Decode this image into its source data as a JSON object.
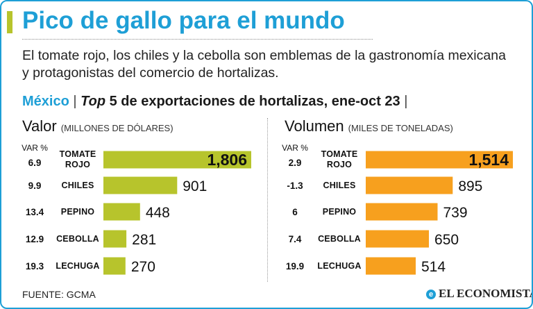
{
  "title": "Pico de gallo para el mundo",
  "subtitle": "El tomate rojo, los chiles y la cebolla son emblemas de la gastronomía mexicana y protagonistas del comercio de hortalizas.",
  "section": {
    "country": "México",
    "separator": "|",
    "top_word": "Top",
    "heading_rest": " 5 de exportaciones de hortalizas, ene-oct 23 ",
    "end_separator": "|"
  },
  "colors": {
    "accent": "#1e9fd6",
    "valor_bar": "#b7c42c",
    "volumen_bar": "#f7a01e",
    "lime_mark": "#b7c42c"
  },
  "chart_data": [
    {
      "type": "bar",
      "orientation": "horizontal",
      "title": "Valor",
      "unit": "(MILLONES DE DÓLARES)",
      "var_header": [
        "VAR %"
      ],
      "categories": [
        [
          "TOMATE",
          "ROJO"
        ],
        [
          "CHILES"
        ],
        [
          "PEPINO"
        ],
        [
          "CEBOLLA"
        ],
        [
          "LECHUGA"
        ]
      ],
      "values": [
        1806,
        901,
        448,
        281,
        270
      ],
      "value_labels": [
        "1,806",
        "901",
        "448",
        "281",
        "270"
      ],
      "var_pct": [
        "6.9",
        "9.9",
        "13.4",
        "12.9",
        "19.3"
      ],
      "xlim": [
        0,
        1806
      ]
    },
    {
      "type": "bar",
      "orientation": "horizontal",
      "title": "Volumen",
      "unit": "(MILES DE TONELADAS)",
      "var_header": [
        "VAR %"
      ],
      "categories": [
        [
          "TOMATE",
          "ROJO"
        ],
        [
          "CHILES"
        ],
        [
          "PEPINO"
        ],
        [
          "CEBOLLA"
        ],
        [
          "LECHUGA"
        ]
      ],
      "values": [
        1514,
        895,
        739,
        650,
        514
      ],
      "value_labels": [
        "1,514",
        "895",
        "739",
        "650",
        "514"
      ],
      "var_pct": [
        "2.9",
        "-1.3",
        "6",
        "7.4",
        "19.9"
      ],
      "xlim": [
        0,
        1514
      ]
    }
  ],
  "footer": {
    "source": "FUENTE: GCMA",
    "brand": "EL ECONOMISTA",
    "brand_mark": "e"
  }
}
